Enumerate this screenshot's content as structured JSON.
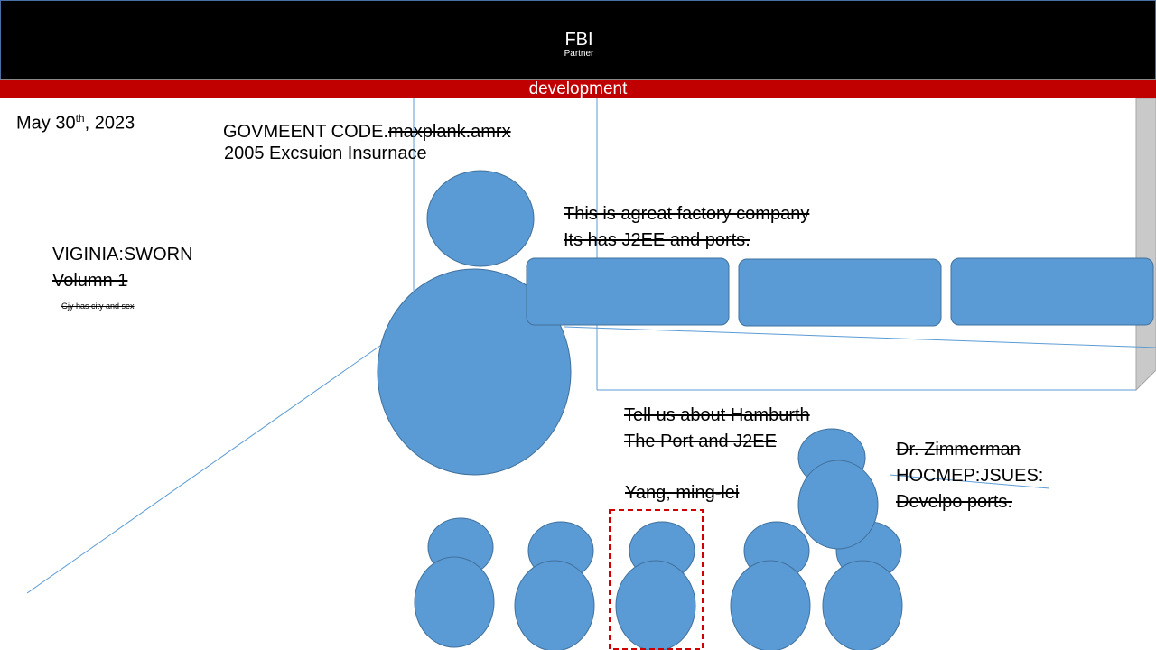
{
  "header": {
    "title": "FBI",
    "subtitle": "Partner"
  },
  "band": {
    "label": "development"
  },
  "date": {
    "main": "May 30",
    "sup": "th",
    "rest": ", 2023"
  },
  "code_block": {
    "line1_prefix": "GOVMEENT CODE.",
    "line1_struck": "maxplank.amrx",
    "line2": "2005 Excsuion Insurnace"
  },
  "left_block": {
    "line1": "VIGINIA:SWORN",
    "line2": "Volumn 1",
    "small": "Gjy has city and sex"
  },
  "factory_note": {
    "line1": "This is agreat factory company",
    "line2": "Its has J2EE and ports."
  },
  "hamburth_note": {
    "line1": "Tell us about Hamburth",
    "line2": "The Port and J2EE"
  },
  "person_label": "Yang, ming-lei",
  "zimmerman_note": {
    "line1": "Dr. Zimmerman",
    "line2": "HOCMEP:JSUES:",
    "line3": "Develpo ports."
  },
  "colors": {
    "shape_fill": "#5b9bd5",
    "shape_stroke": "#41719c",
    "band": "#c00000",
    "header": "#000000",
    "selection": "#d00000"
  }
}
